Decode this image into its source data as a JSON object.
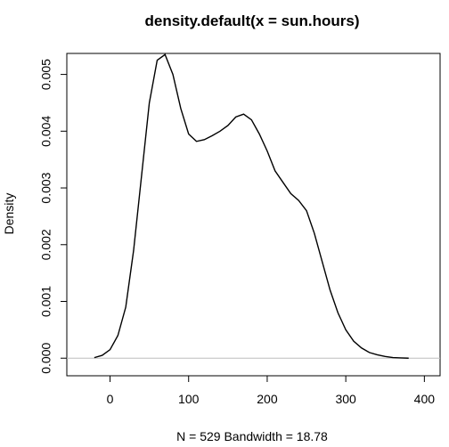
{
  "chart_data": {
    "type": "line",
    "title": "density.default(x = sun.hours)",
    "xlabel": "N = 529   Bandwidth = 18.78",
    "ylabel": "Density",
    "xlim": [
      -55,
      420
    ],
    "ylim": [
      -0.00031,
      0.00537
    ],
    "x_ticks": [
      0,
      100,
      200,
      300,
      400
    ],
    "y_ticks": [
      0.0,
      0.001,
      0.002,
      0.003,
      0.004,
      0.005
    ],
    "x_tick_labels": [
      "0",
      "100",
      "200",
      "300",
      "400"
    ],
    "y_tick_labels": [
      "0.000",
      "0.001",
      "0.002",
      "0.003",
      "0.004",
      "0.005"
    ],
    "baseline": 0,
    "grid": false,
    "legend": "none",
    "series": [
      {
        "x": [
          -20,
          -10,
          0,
          10,
          20,
          30,
          40,
          50,
          60,
          70,
          80,
          90,
          100,
          110,
          120,
          130,
          140,
          150,
          160,
          170,
          180,
          190,
          200,
          210,
          220,
          230,
          240,
          250,
          260,
          270,
          280,
          290,
          300,
          310,
          320,
          330,
          340,
          350,
          360,
          370,
          380
        ],
        "y": [
          1e-05,
          5e-05,
          0.00015,
          0.0004,
          0.0009,
          0.0019,
          0.0032,
          0.0045,
          0.00525,
          0.00535,
          0.005,
          0.0044,
          0.00395,
          0.00382,
          0.00385,
          0.00392,
          0.004,
          0.0041,
          0.00425,
          0.0043,
          0.0042,
          0.00395,
          0.00365,
          0.0033,
          0.0031,
          0.0029,
          0.00278,
          0.0026,
          0.0022,
          0.0017,
          0.0012,
          0.0008,
          0.0005,
          0.0003,
          0.00018,
          0.0001,
          6e-05,
          3e-05,
          1e-05,
          5e-06,
          0.0
        ]
      }
    ]
  }
}
